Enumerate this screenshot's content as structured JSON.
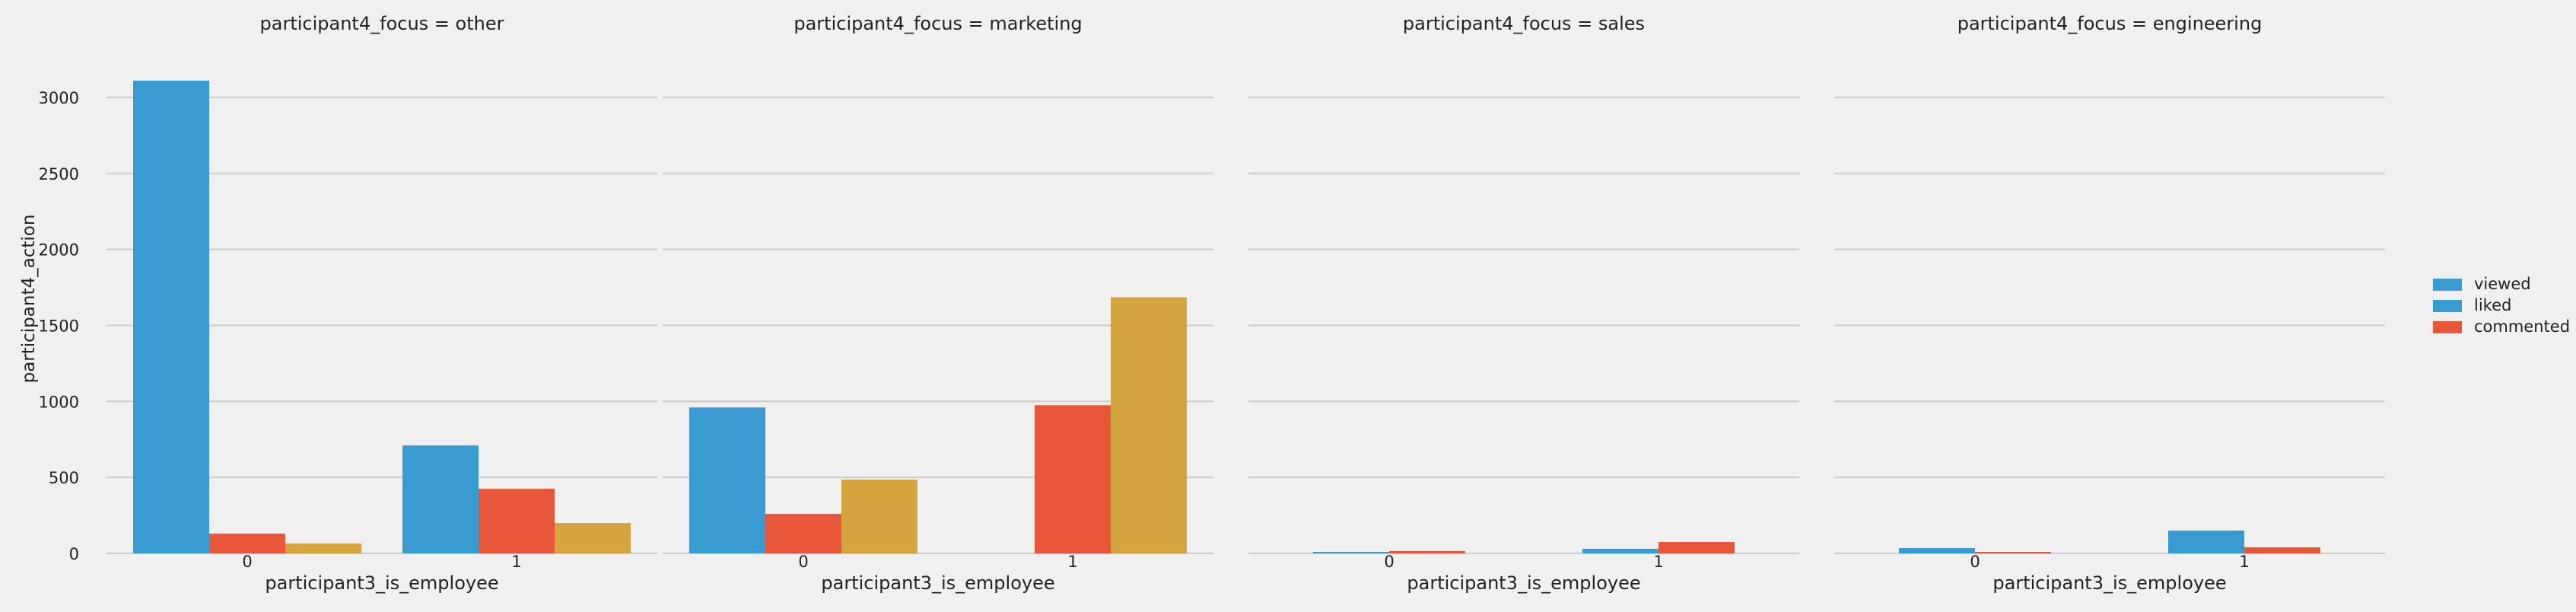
{
  "chart_data": {
    "type": "bar",
    "ylabel": "participant4_action",
    "ylim": [
      0,
      3250
    ],
    "yticks": [
      0,
      500,
      1000,
      1500,
      2000,
      2500,
      3000
    ],
    "grid": true,
    "legend": {
      "placement": "right",
      "entries": [
        {
          "name": "viewed",
          "color": "#3a9bd0"
        },
        {
          "name": "liked",
          "color": "#3a9bd0"
        },
        {
          "name": "commented",
          "color": "#e8573a"
        }
      ]
    },
    "bar_colors": [
      "#3a9bd0",
      "#e8573a",
      "#d4a43f"
    ],
    "panels": [
      {
        "title": "participant4_focus = other",
        "xlabel": "participant3_is_employee",
        "categories": [
          "0",
          "1"
        ],
        "series": [
          {
            "values": [
              3110,
              710
            ]
          },
          {
            "values": [
              130,
              425
            ]
          },
          {
            "values": [
              65,
              200
            ]
          }
        ]
      },
      {
        "title": "participant4_focus = marketing",
        "xlabel": "participant3_is_employee",
        "categories": [
          "0",
          "1"
        ],
        "series": [
          {
            "values": [
              960,
              0
            ]
          },
          {
            "values": [
              260,
              975
            ]
          },
          {
            "values": [
              485,
              1685
            ]
          }
        ]
      },
      {
        "title": "participant4_focus = sales",
        "xlabel": "participant3_is_employee",
        "categories": [
          "0",
          "1"
        ],
        "series": [
          {
            "values": [
              10,
              30
            ]
          },
          {
            "values": [
              15,
              75
            ]
          }
        ]
      },
      {
        "title": "participant4_focus = engineering",
        "xlabel": "participant3_is_employee",
        "categories": [
          "0",
          "1"
        ],
        "series": [
          {
            "values": [
              35,
              150
            ]
          },
          {
            "values": [
              10,
              40
            ]
          }
        ]
      }
    ]
  }
}
